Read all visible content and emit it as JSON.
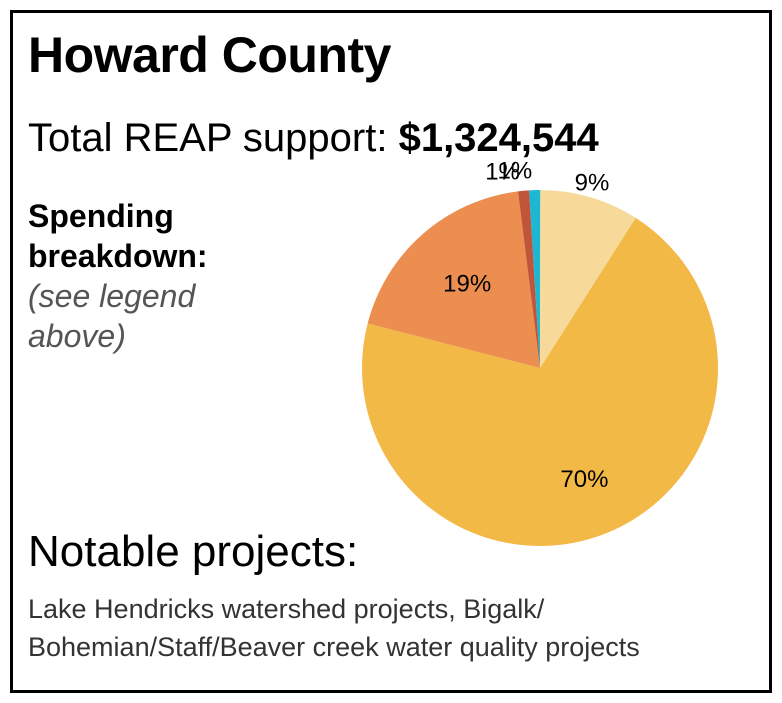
{
  "header": {
    "title": "Howard County",
    "total_label": "Total REAP support:",
    "total_amount": "$1,324,544"
  },
  "breakdown": {
    "heading": "Spending breakdown:",
    "note": "(see legend above)"
  },
  "projects": {
    "heading": "Notable projects:",
    "description": "Lake Hendricks watershed projects, Bigalk/ Bohemian/Staff/Beaver creek water quality projects"
  },
  "chart_data": {
    "type": "pie",
    "title": "",
    "slices": [
      {
        "label": "70%",
        "value": 70,
        "color": "#F2B947"
      },
      {
        "label": "19%",
        "value": 19,
        "color": "#EC8E4F"
      },
      {
        "label": "1%",
        "value": 1,
        "color": "#C0553A"
      },
      {
        "label": "1%",
        "value": 1,
        "color": "#1DB6D3"
      },
      {
        "label": "9%",
        "value": 9,
        "color": "#F7DA9A"
      }
    ]
  }
}
